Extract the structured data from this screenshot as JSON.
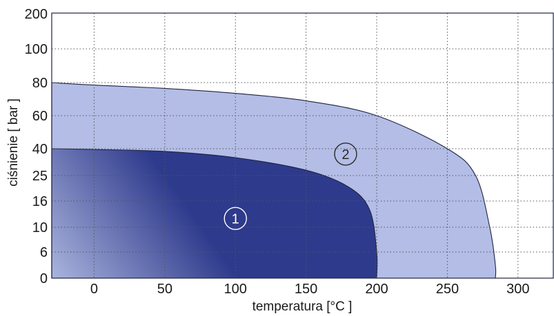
{
  "chart_data": {
    "type": "area",
    "title": "",
    "xlabel": "temperatura [°C ]",
    "ylabel": "ciśnienie [ bar ]",
    "x_ticks": [
      0,
      50,
      100,
      150,
      200,
      250,
      300
    ],
    "y_ticks": [
      0,
      6,
      10,
      16,
      25,
      40,
      60,
      80,
      100,
      200
    ],
    "xlim": [
      -30,
      325
    ],
    "y_scale": "categorical-nonlinear",
    "grid": true,
    "colors": {
      "region_1_dark": "#2e3a8c",
      "region_1_light": "#a9b3dc",
      "region_2": "#b3bde6",
      "outline": "#1f2340",
      "grid": "#555555",
      "text": "#1a1a1a"
    },
    "series": [
      {
        "name": "1",
        "x": [
          -30,
          0,
          50,
          100,
          150,
          180,
          195,
          200,
          200
        ],
        "y": [
          40,
          39.6,
          38.5,
          35,
          28,
          21,
          14,
          6,
          0
        ]
      },
      {
        "name": "2",
        "x": [
          -30,
          0,
          50,
          100,
          150,
          200,
          250,
          270,
          280,
          284,
          284
        ],
        "y": [
          80,
          78.5,
          76.5,
          73.5,
          69,
          60,
          40,
          25,
          10,
          3,
          0
        ]
      }
    ],
    "region_labels": [
      {
        "text": "1",
        "x": 100,
        "y": 12
      },
      {
        "text": "2",
        "x": 178,
        "y": 37
      }
    ]
  }
}
